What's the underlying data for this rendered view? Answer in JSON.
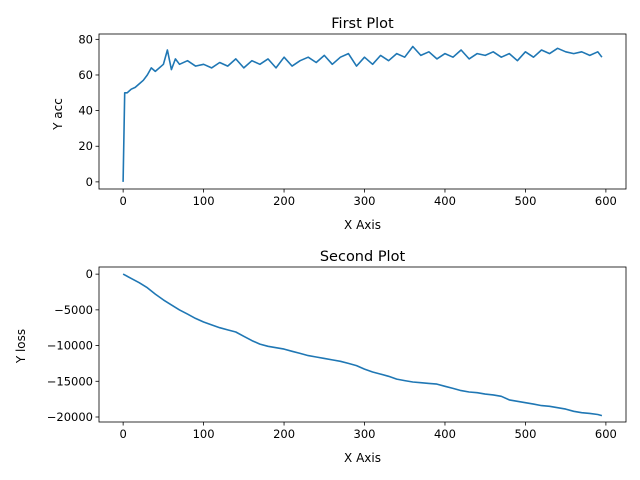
{
  "chart_data": [
    {
      "type": "line",
      "title": "First Plot",
      "xlabel": "X Axis",
      "ylabel": "Y acc",
      "xlim": [
        -30,
        625
      ],
      "ylim": [
        -4,
        83
      ],
      "xticks": [
        0,
        100,
        200,
        300,
        400,
        500,
        600
      ],
      "yticks": [
        0,
        20,
        40,
        60,
        80
      ],
      "grid": false,
      "color": "#1f77b4",
      "series": [
        {
          "x": [
            0,
            2,
            5,
            10,
            15,
            20,
            25,
            30,
            35,
            40,
            50,
            55,
            60,
            65,
            70,
            80,
            90,
            100,
            110,
            120,
            130,
            140,
            150,
            160,
            170,
            180,
            190,
            200,
            210,
            220,
            230,
            240,
            250,
            260,
            270,
            280,
            290,
            300,
            310,
            320,
            330,
            340,
            350,
            360,
            370,
            380,
            390,
            400,
            410,
            420,
            430,
            440,
            450,
            460,
            470,
            480,
            490,
            500,
            510,
            520,
            530,
            540,
            550,
            560,
            570,
            580,
            590,
            595
          ],
          "y": [
            0,
            50,
            50,
            52,
            53,
            55,
            57,
            60,
            64,
            62,
            66,
            74,
            63,
            69,
            66,
            68,
            65,
            66,
            64,
            67,
            65,
            69,
            64,
            68,
            66,
            69,
            64,
            70,
            65,
            68,
            70,
            67,
            71,
            66,
            70,
            72,
            65,
            70,
            66,
            71,
            68,
            72,
            70,
            76,
            71,
            73,
            69,
            72,
            70,
            74,
            69,
            72,
            71,
            73,
            70,
            72,
            68,
            73,
            70,
            74,
            72,
            75,
            73,
            72,
            73,
            71,
            73,
            70
          ]
        }
      ]
    },
    {
      "type": "line",
      "title": "Second Plot",
      "xlabel": "X Axis",
      "ylabel": "Y loss",
      "xlim": [
        -30,
        625
      ],
      "ylim": [
        -20700,
        1000
      ],
      "xticks": [
        0,
        100,
        200,
        300,
        400,
        500,
        600
      ],
      "yticks": [
        0,
        -5000,
        -10000,
        -15000,
        -20000
      ],
      "grid": false,
      "color": "#1f77b4",
      "series": [
        {
          "x": [
            0,
            10,
            20,
            30,
            40,
            50,
            60,
            70,
            80,
            90,
            100,
            110,
            120,
            130,
            140,
            150,
            160,
            170,
            180,
            190,
            200,
            210,
            220,
            230,
            240,
            250,
            260,
            270,
            280,
            290,
            300,
            310,
            320,
            330,
            340,
            350,
            360,
            370,
            380,
            390,
            400,
            410,
            420,
            430,
            440,
            450,
            460,
            470,
            480,
            490,
            500,
            510,
            520,
            530,
            540,
            550,
            560,
            570,
            580,
            590,
            595
          ],
          "y": [
            0,
            -600,
            -1200,
            -1900,
            -2800,
            -3600,
            -4300,
            -5000,
            -5600,
            -6200,
            -6700,
            -7100,
            -7500,
            -7800,
            -8100,
            -8700,
            -9300,
            -9800,
            -10100,
            -10300,
            -10500,
            -10800,
            -11100,
            -11400,
            -11600,
            -11800,
            -12000,
            -12200,
            -12500,
            -12800,
            -13300,
            -13700,
            -14000,
            -14300,
            -14700,
            -14900,
            -15100,
            -15200,
            -15300,
            -15400,
            -15700,
            -16000,
            -16300,
            -16500,
            -16600,
            -16800,
            -16900,
            -17100,
            -17600,
            -17800,
            -18000,
            -18200,
            -18400,
            -18500,
            -18700,
            -18900,
            -19200,
            -19400,
            -19500,
            -19650,
            -19800
          ]
        }
      ]
    }
  ]
}
